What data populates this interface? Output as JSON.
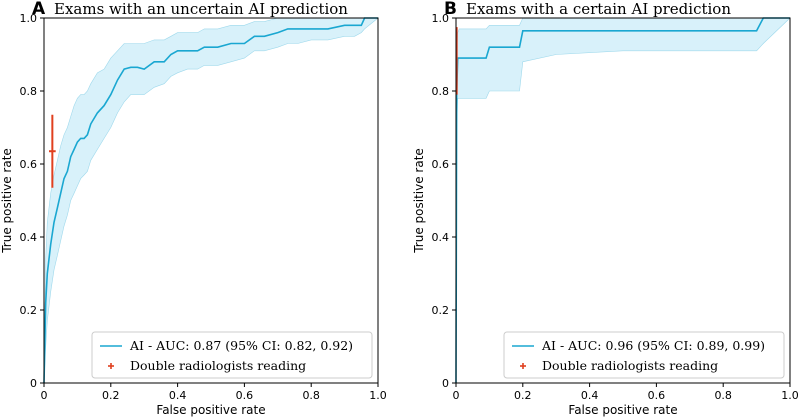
{
  "colors": {
    "roc_line": "#1aa7d1",
    "ci_band": "#d8f1fa",
    "ci_band_edge": "#9fd9ec",
    "reader_marker": "#e0401f",
    "axes": "#000000"
  },
  "chart_data": [
    {
      "type": "line",
      "panel_letter": "A",
      "title": "Exams with an uncertain AI prediction",
      "xlabel": "False positive rate",
      "ylabel": "True positive rate",
      "xlim": [
        0,
        1
      ],
      "ylim": [
        0,
        1
      ],
      "xticks": [
        "0",
        "0.2",
        "0.4",
        "0.6",
        "0.8",
        "1.0"
      ],
      "yticks": [
        "0",
        "0.2",
        "0.4",
        "0.6",
        "0.8",
        "1.0"
      ],
      "grid": false,
      "legend_position": "lower-right",
      "series": [
        {
          "name": "AI - AUC: 0.87 (95% CI: 0.82, 0.92)",
          "kind": "roc",
          "x": [
            0,
            0.005,
            0.01,
            0.02,
            0.03,
            0.04,
            0.05,
            0.06,
            0.07,
            0.08,
            0.09,
            0.1,
            0.11,
            0.12,
            0.13,
            0.14,
            0.16,
            0.18,
            0.2,
            0.22,
            0.24,
            0.26,
            0.28,
            0.3,
            0.33,
            0.36,
            0.38,
            0.4,
            0.43,
            0.46,
            0.48,
            0.52,
            0.56,
            0.6,
            0.63,
            0.66,
            0.7,
            0.73,
            0.76,
            0.8,
            0.85,
            0.9,
            0.93,
            0.95,
            0.96,
            1.0
          ],
          "y": [
            0,
            0.22,
            0.3,
            0.38,
            0.44,
            0.48,
            0.52,
            0.56,
            0.58,
            0.62,
            0.64,
            0.66,
            0.67,
            0.67,
            0.68,
            0.71,
            0.74,
            0.76,
            0.79,
            0.83,
            0.86,
            0.865,
            0.865,
            0.86,
            0.88,
            0.88,
            0.9,
            0.91,
            0.91,
            0.91,
            0.92,
            0.92,
            0.93,
            0.93,
            0.95,
            0.95,
            0.96,
            0.97,
            0.97,
            0.97,
            0.97,
            0.98,
            0.98,
            0.98,
            1.0,
            1.0
          ],
          "ci_lower": [
            0,
            0.1,
            0.17,
            0.25,
            0.31,
            0.35,
            0.39,
            0.43,
            0.46,
            0.5,
            0.52,
            0.54,
            0.56,
            0.57,
            0.58,
            0.61,
            0.64,
            0.67,
            0.7,
            0.74,
            0.77,
            0.79,
            0.79,
            0.79,
            0.81,
            0.82,
            0.84,
            0.85,
            0.86,
            0.86,
            0.87,
            0.87,
            0.88,
            0.89,
            0.91,
            0.91,
            0.92,
            0.93,
            0.93,
            0.94,
            0.94,
            0.95,
            0.95,
            0.96,
            0.97,
            1.0
          ],
          "ci_upper": [
            0,
            0.34,
            0.44,
            0.52,
            0.57,
            0.61,
            0.65,
            0.68,
            0.7,
            0.73,
            0.76,
            0.78,
            0.79,
            0.79,
            0.8,
            0.82,
            0.85,
            0.86,
            0.89,
            0.91,
            0.93,
            0.93,
            0.93,
            0.93,
            0.94,
            0.94,
            0.95,
            0.96,
            0.96,
            0.96,
            0.97,
            0.97,
            0.98,
            0.98,
            0.99,
            0.99,
            1.0,
            1.0,
            1.0,
            1.0,
            1.0,
            1.0,
            1.0,
            1.0,
            1.0,
            1.0
          ]
        },
        {
          "name": "Double radiologists reading",
          "kind": "point",
          "x": 0.025,
          "y": 0.635,
          "y_err": [
            0.535,
            0.735
          ],
          "x_err": [
            0.015,
            0.035
          ]
        }
      ]
    },
    {
      "type": "line",
      "panel_letter": "B",
      "title": "Exams with a certain AI prediction",
      "xlabel": "False positive rate",
      "ylabel": "True positive rate",
      "xlim": [
        0,
        1
      ],
      "ylim": [
        0,
        1
      ],
      "xticks": [
        "0",
        "0.2",
        "0.4",
        "0.6",
        "0.8",
        "1.0"
      ],
      "yticks": [
        "0",
        "0.2",
        "0.4",
        "0.6",
        "0.8",
        "1.0"
      ],
      "grid": false,
      "legend_position": "lower-right",
      "series": [
        {
          "name": "AI - AUC: 0.96 (95% CI: 0.89, 0.99)",
          "kind": "roc",
          "x": [
            0,
            0.002,
            0.005,
            0.01,
            0.09,
            0.1,
            0.19,
            0.2,
            0.3,
            0.5,
            0.7,
            0.9,
            0.92,
            1.0
          ],
          "y": [
            0,
            0.8,
            0.89,
            0.89,
            0.89,
            0.92,
            0.92,
            0.965,
            0.965,
            0.965,
            0.965,
            0.965,
            1.0,
            1.0
          ],
          "ci_lower": [
            0,
            0.7,
            0.78,
            0.78,
            0.78,
            0.8,
            0.8,
            0.88,
            0.9,
            0.91,
            0.91,
            0.91,
            0.93,
            1.0
          ],
          "ci_upper": [
            0,
            0.9,
            0.96,
            0.97,
            0.97,
            0.98,
            0.98,
            1.0,
            1.0,
            1.0,
            1.0,
            1.0,
            1.0,
            1.0
          ]
        },
        {
          "name": "Double radiologists reading",
          "kind": "point",
          "x": 0.002,
          "y": 0.89,
          "y_err": [
            0.79,
            0.975
          ],
          "x_err": [
            0.0,
            0.004
          ]
        }
      ]
    }
  ]
}
